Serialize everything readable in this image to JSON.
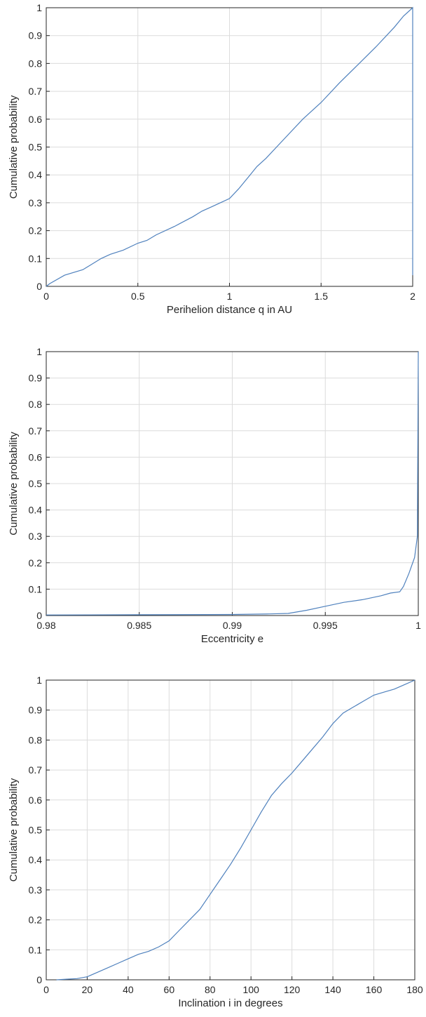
{
  "chart_data": [
    {
      "type": "line",
      "title": "",
      "xlabel": "Perihelion distance q in AU",
      "ylabel": "Cumulative probability",
      "xlim": [
        0,
        2
      ],
      "ylim": [
        0,
        1
      ],
      "grid": true,
      "xticks": [
        0,
        0.5,
        1,
        1.5,
        2
      ],
      "xtick_labels": [
        "0",
        "0.5",
        "1",
        "1.5",
        "2"
      ],
      "yticks": [
        0,
        0.1,
        0.2,
        0.3,
        0.4,
        0.5,
        0.6,
        0.7,
        0.8,
        0.9,
        1
      ],
      "ytick_labels": [
        "0",
        "0.1",
        "0.2",
        "0.3",
        "0.4",
        "0.5",
        "0.6",
        "0.7",
        "0.8",
        "0.9",
        "1"
      ],
      "series": [
        {
          "color": "#4f81bd",
          "x": [
            0,
            0.02,
            0.1,
            0.2,
            0.3,
            0.35,
            0.42,
            0.5,
            0.55,
            0.6,
            0.7,
            0.8,
            0.85,
            0.9,
            0.95,
            1.0,
            1.05,
            1.1,
            1.15,
            1.2,
            1.3,
            1.4,
            1.5,
            1.6,
            1.7,
            1.8,
            1.9,
            1.95,
            2.0,
            2.0
          ],
          "y": [
            0,
            0.01,
            0.04,
            0.06,
            0.1,
            0.115,
            0.13,
            0.155,
            0.165,
            0.185,
            0.215,
            0.25,
            0.27,
            0.285,
            0.3,
            0.315,
            0.35,
            0.39,
            0.43,
            0.46,
            0.53,
            0.6,
            0.66,
            0.73,
            0.795,
            0.86,
            0.93,
            0.97,
            1.0,
            0.04
          ]
        }
      ]
    },
    {
      "type": "line",
      "title": "",
      "xlabel": "Eccentricity e",
      "ylabel": "Cumulative probability",
      "xlim": [
        0.98,
        1
      ],
      "ylim": [
        0,
        1
      ],
      "grid": true,
      "xticks": [
        0.98,
        0.985,
        0.99,
        0.995,
        1
      ],
      "xtick_labels": [
        "0.98",
        "0.985",
        "0.99",
        "0.995",
        "1"
      ],
      "yticks": [
        0,
        0.1,
        0.2,
        0.3,
        0.4,
        0.5,
        0.6,
        0.7,
        0.8,
        0.9,
        1
      ],
      "ytick_labels": [
        "0",
        "0.1",
        "0.2",
        "0.3",
        "0.4",
        "0.5",
        "0.6",
        "0.7",
        "0.8",
        "0.9",
        "1"
      ],
      "series": [
        {
          "color": "#4f81bd",
          "x": [
            0.98,
            0.985,
            0.99,
            0.992,
            0.993,
            0.994,
            0.995,
            0.996,
            0.997,
            0.998,
            0.9985,
            0.999,
            0.9992,
            0.9995,
            0.9998,
            0.99995,
            1.0
          ],
          "y": [
            0.002,
            0.003,
            0.004,
            0.006,
            0.008,
            0.02,
            0.035,
            0.05,
            0.06,
            0.075,
            0.085,
            0.09,
            0.11,
            0.16,
            0.22,
            0.3,
            1.0
          ]
        }
      ]
    },
    {
      "type": "line",
      "title": "",
      "xlabel": "Inclination i in degrees",
      "ylabel": "Cumulative probability",
      "xlim": [
        0,
        180
      ],
      "ylim": [
        0,
        1
      ],
      "grid": true,
      "xticks": [
        0,
        20,
        40,
        60,
        80,
        100,
        120,
        140,
        160,
        180
      ],
      "xtick_labels": [
        "0",
        "20",
        "40",
        "60",
        "80",
        "100",
        "120",
        "140",
        "160",
        "180"
      ],
      "yticks": [
        0,
        0.1,
        0.2,
        0.3,
        0.4,
        0.5,
        0.6,
        0.7,
        0.8,
        0.9,
        1
      ],
      "ytick_labels": [
        "0",
        "0.1",
        "0.2",
        "0.3",
        "0.4",
        "0.5",
        "0.6",
        "0.7",
        "0.8",
        "0.9",
        "1"
      ],
      "series": [
        {
          "color": "#4f81bd",
          "x": [
            5,
            10,
            15,
            20,
            25,
            30,
            35,
            40,
            45,
            50,
            55,
            60,
            65,
            70,
            75,
            80,
            85,
            90,
            95,
            100,
            105,
            110,
            115,
            120,
            125,
            130,
            135,
            140,
            145,
            150,
            155,
            160,
            165,
            170,
            175,
            180
          ],
          "y": [
            0,
            0.002,
            0.004,
            0.01,
            0.025,
            0.04,
            0.055,
            0.07,
            0.085,
            0.095,
            0.11,
            0.13,
            0.165,
            0.2,
            0.235,
            0.285,
            0.335,
            0.385,
            0.44,
            0.5,
            0.56,
            0.615,
            0.655,
            0.69,
            0.73,
            0.77,
            0.81,
            0.855,
            0.89,
            0.91,
            0.93,
            0.95,
            0.96,
            0.97,
            0.985,
            1.0
          ]
        }
      ]
    }
  ]
}
